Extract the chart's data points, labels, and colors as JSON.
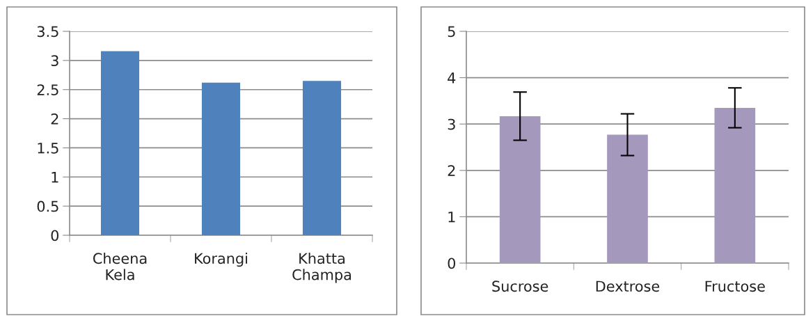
{
  "chart_data": [
    {
      "type": "bar",
      "categories": [
        "Cheena\nKela",
        "Korangi",
        "Khatta\nChampa"
      ],
      "values": [
        3.16,
        2.62,
        2.65
      ],
      "color": "#4f81bd",
      "ylim": [
        0,
        3.5
      ],
      "yticks": [
        {
          "value": 0,
          "label": "0"
        },
        0.5,
        {
          "value": 1,
          "label": "1"
        },
        1.5,
        {
          "value": 2,
          "label": "2"
        },
        2.5,
        {
          "value": 3,
          "label": "3"
        },
        3.5
      ],
      "grid": "y"
    },
    {
      "type": "bar",
      "categories": [
        "Sucrose",
        "Dextrose",
        "Fructose"
      ],
      "values": [
        3.17,
        2.77,
        3.35
      ],
      "errors": [
        0.52,
        0.45,
        0.43
      ],
      "color": "#a598bd",
      "ylim": [
        0,
        5
      ],
      "yticks": [
        0,
        1,
        2,
        3,
        4,
        5
      ],
      "grid": "y"
    }
  ]
}
